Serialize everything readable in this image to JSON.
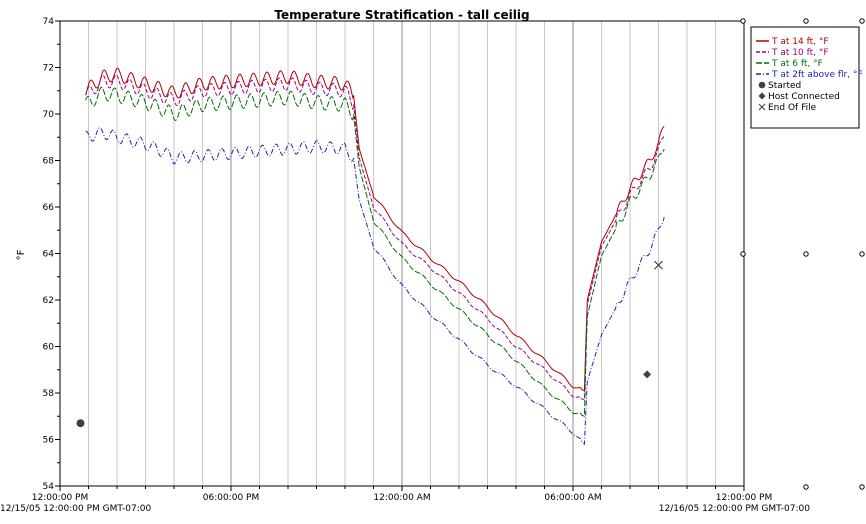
{
  "chart_data": {
    "type": "line",
    "title": "Temperature Stratification - tall ceilig",
    "ylabel": "°F",
    "ylim": [
      54,
      74
    ],
    "yticks": [
      54,
      56,
      58,
      60,
      62,
      64,
      66,
      68,
      70,
      72,
      74
    ],
    "xlim_hours": [
      0,
      24
    ],
    "x_unit": "hours after 12/15/05 12:00:00 PM",
    "xticks": [
      {
        "x": 0,
        "label": "12:00:00 PM"
      },
      {
        "x": 6,
        "label": "06:00:00 PM"
      },
      {
        "x": 12,
        "label": "12:00:00 AM"
      },
      {
        "x": 18,
        "label": "06:00:00 AM"
      },
      {
        "x": 24,
        "label": "12:00:00 PM"
      }
    ],
    "date_labels": {
      "left": "12/15/05 12:00:00 PM GMT-07:00",
      "right": "12/16/05 12:00:00 PM GMT-07:00"
    },
    "legend_position": "top-right",
    "series": [
      {
        "name": "T at 14 ft, °F",
        "color": "#b00000",
        "dash": "solid",
        "osc": 0.28,
        "x": [
          0.9,
          1.5,
          2.0,
          3.0,
          4.0,
          5.0,
          6.0,
          7.0,
          8.0,
          9.0,
          10.0,
          10.3,
          10.5,
          11.0,
          12.0,
          13.0,
          14.0,
          15.0,
          16.0,
          17.0,
          18.0,
          18.4,
          18.5,
          19.0,
          20.0,
          20.7,
          21.0,
          21.2
        ],
        "y": [
          71.0,
          71.6,
          71.7,
          71.3,
          70.9,
          71.3,
          71.4,
          71.5,
          71.6,
          71.4,
          71.3,
          70.8,
          68.5,
          66.5,
          64.9,
          63.8,
          62.8,
          61.7,
          60.5,
          59.4,
          58.3,
          58.1,
          62.0,
          64.5,
          66.8,
          68.0,
          68.7,
          69.5
        ]
      },
      {
        "name": "T at 10 ft, °F",
        "color": "#a00080",
        "dash": "4,2",
        "osc": 0.28,
        "x": [
          0.9,
          1.5,
          2.0,
          3.0,
          4.0,
          5.0,
          6.0,
          7.0,
          8.0,
          9.0,
          10.0,
          10.3,
          10.5,
          11.0,
          12.0,
          13.0,
          14.0,
          15.0,
          16.0,
          17.0,
          18.0,
          18.4,
          18.5,
          19.0,
          20.0,
          20.7,
          21.0,
          21.2
        ],
        "y": [
          70.8,
          71.4,
          71.4,
          71.0,
          70.6,
          71.0,
          71.1,
          71.2,
          71.3,
          71.1,
          71.0,
          70.4,
          68.1,
          66.0,
          64.4,
          63.4,
          62.3,
          61.2,
          60.0,
          59.0,
          57.9,
          57.7,
          61.8,
          64.3,
          66.5,
          67.7,
          68.4,
          69.2
        ]
      },
      {
        "name": "T at 6 ft, °F",
        "color": "#007000",
        "dash": "6,2",
        "osc": 0.3,
        "x": [
          0.9,
          1.5,
          2.0,
          3.0,
          4.0,
          5.0,
          6.0,
          7.0,
          8.0,
          9.0,
          10.0,
          10.3,
          10.5,
          11.0,
          12.0,
          13.0,
          14.0,
          15.0,
          16.0,
          17.0,
          18.0,
          18.4,
          18.5,
          19.0,
          20.0,
          20.7,
          21.0,
          21.2
        ],
        "y": [
          70.4,
          70.9,
          70.8,
          70.5,
          70.0,
          70.4,
          70.5,
          70.6,
          70.7,
          70.5,
          70.4,
          70.0,
          67.7,
          65.4,
          63.8,
          62.7,
          61.6,
          60.5,
          59.4,
          58.2,
          57.2,
          57.0,
          61.3,
          63.9,
          66.2,
          67.4,
          68.0,
          68.7
        ]
      },
      {
        "name": "T at 2ft above flr, °F",
        "color": "#2020c0",
        "dash": "5,2,1,2",
        "osc": 0.25,
        "x": [
          0.9,
          1.5,
          2.0,
          3.0,
          3.6,
          4.0,
          5.0,
          6.0,
          7.0,
          8.0,
          9.0,
          10.0,
          10.3,
          10.5,
          11.0,
          12.0,
          13.0,
          14.0,
          15.0,
          16.0,
          17.0,
          18.0,
          18.4,
          18.5,
          19.0,
          20.0,
          20.7,
          21.0,
          21.2
        ],
        "y": [
          69.0,
          69.2,
          69.0,
          68.7,
          68.4,
          68.1,
          68.2,
          68.3,
          68.4,
          68.5,
          68.6,
          68.5,
          68.1,
          66.3,
          64.3,
          62.6,
          61.4,
          60.3,
          59.2,
          58.3,
          57.3,
          56.3,
          55.8,
          58.5,
          60.5,
          62.8,
          64.2,
          65.0,
          65.7
        ]
      }
    ],
    "markers": [
      {
        "name": "Started",
        "shape": "circle",
        "x": 0.72,
        "y": 56.7
      },
      {
        "name": "Host Connected",
        "shape": "diamond",
        "x": 20.6,
        "y": 58.8
      },
      {
        "name": "End Of File",
        "shape": "x",
        "x": 21.0,
        "y": 63.5
      }
    ]
  }
}
